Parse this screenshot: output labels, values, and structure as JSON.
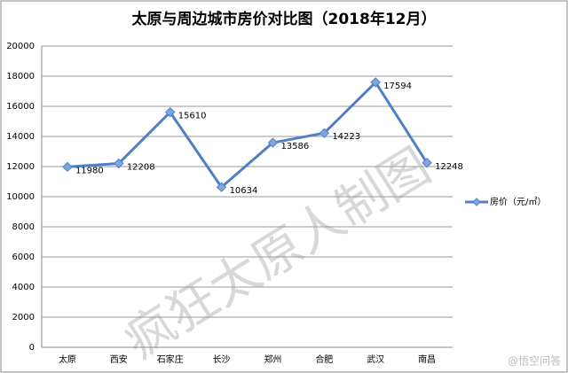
{
  "chart_data": {
    "type": "line",
    "title": "太原与周边城市房价对比图（2018年12月）",
    "categories": [
      "太原",
      "西安",
      "石家庄",
      "长沙",
      "郑州",
      "合肥",
      "武汉",
      "南昌"
    ],
    "series": [
      {
        "name": "房价（元/㎡）",
        "color": "#4f7fc4",
        "values": [
          11980,
          12208,
          15610,
          10634,
          13586,
          14223,
          17594,
          12248
        ]
      }
    ],
    "ylim": [
      0,
      20000
    ],
    "yticks": [
      0,
      2000,
      4000,
      6000,
      8000,
      10000,
      12000,
      14000,
      16000,
      18000,
      20000
    ],
    "grid": true,
    "data_labels": true,
    "legend": "right",
    "watermark": "疯狂太原人制图",
    "logo": "@悟空问答"
  }
}
